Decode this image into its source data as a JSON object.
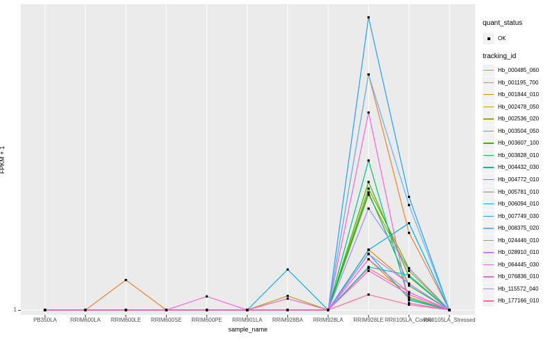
{
  "figure": {
    "background": "#FFFFFF",
    "panel_background": "#EBEBEB",
    "gridline_color": "#FFFFFF",
    "tick_color": "#333333",
    "axis_text_color": "#4D4D4D",
    "marker_color": "#000000"
  },
  "axes": {
    "x": {
      "title": "sample_name"
    },
    "y": {
      "title": "FPKM + 1",
      "tick_label": "1"
    }
  },
  "legend": {
    "quant_status": {
      "title": "quant_status",
      "item_label": "OK",
      "marker": "black-point"
    },
    "tracking_id": {
      "title": "tracking_id"
    }
  },
  "chart_data": {
    "type": "line",
    "title": "",
    "xlabel": "sample_name",
    "ylabel": "FPKM + 1",
    "grid": true,
    "legend_position": "right",
    "y_axis": {
      "scale": "log10",
      "labeled_ticks": [
        1
      ],
      "estimated_top_value": 3000
    },
    "quant_status_of_all_points": "OK",
    "categories": [
      "PB350LA",
      "RRIM600LA",
      "RRIM600LE",
      "RRIM600SE",
      "RRIM600PE",
      "RRIM901LA",
      "RRIM928BA",
      "RRIM928LA",
      "RRIM928LE",
      "RRII105LA_Control",
      "RRII105LA_Stressed"
    ],
    "series": [
      {
        "name": "Hb_000485_060",
        "color": "#F8766D",
        "values": [
          1,
          1,
          1,
          1,
          1,
          1,
          1,
          1,
          3.0,
          1.6,
          1
        ]
      },
      {
        "name": "Hb_001195_700",
        "color": "#EA8331",
        "values": [
          1,
          1,
          2.2,
          1,
          1,
          1,
          1,
          1,
          490,
          7.6,
          1
        ]
      },
      {
        "name": "Hb_001844_010",
        "color": "#D89000",
        "values": [
          1,
          1,
          1,
          1,
          1,
          1,
          1,
          1,
          4.9,
          2.0,
          1
        ]
      },
      {
        "name": "Hb_002478_050",
        "color": "#C09B00",
        "values": [
          1,
          1,
          1,
          1,
          1,
          1,
          1,
          1,
          3.8,
          1.4,
          1
        ]
      },
      {
        "name": "Hb_002536_020",
        "color": "#A3A500",
        "values": [
          1,
          1,
          1,
          1,
          1,
          1,
          1.45,
          1,
          20.7,
          2.8,
          1
        ]
      },
      {
        "name": "Hb_003504_050",
        "color": "#7CAE00",
        "values": [
          1,
          1,
          1,
          1,
          1,
          1,
          1,
          1,
          24.4,
          3.0,
          1
        ]
      },
      {
        "name": "Hb_003607_100",
        "color": "#39B600",
        "values": [
          1,
          1,
          1,
          1,
          1,
          1,
          1,
          1,
          29,
          2.4,
          1
        ]
      },
      {
        "name": "Hb_003828_010",
        "color": "#00BB4E",
        "values": [
          1,
          1,
          1,
          1,
          1,
          1,
          1,
          1,
          22,
          1.9,
          1
        ]
      },
      {
        "name": "Hb_004432_030",
        "color": "#00C087",
        "values": [
          1,
          1,
          1,
          1,
          1,
          1,
          1,
          1,
          51,
          1.3,
          1
        ]
      },
      {
        "name": "Hb_004772_010",
        "color": "#00C0B4",
        "values": [
          1,
          1,
          1,
          1,
          1,
          1,
          1,
          1,
          4.4,
          1.35,
          1
        ]
      },
      {
        "name": "Hb_005781_010",
        "color": "#00BCD8",
        "values": [
          1,
          1,
          1,
          1,
          1,
          1,
          1,
          1,
          3.1,
          2.5,
          1
        ]
      },
      {
        "name": "Hb_006094_010",
        "color": "#00B0F6",
        "values": [
          1,
          1,
          1,
          1,
          1,
          1,
          2.9,
          1,
          4.85,
          9.8,
          1
        ]
      },
      {
        "name": "Hb_007749_030",
        "color": "#1E9FF2",
        "values": [
          1,
          1,
          1,
          1,
          1,
          1,
          1,
          1,
          2200,
          19.6,
          1
        ]
      },
      {
        "name": "Hb_008375_020",
        "color": "#5EB3FF",
        "values": [
          1,
          1,
          1,
          1,
          1,
          1,
          1,
          1,
          490,
          15.8,
          1
        ]
      },
      {
        "name": "Hb_024446_010",
        "color": "#9590FF",
        "values": [
          1,
          1,
          1,
          1,
          1,
          1,
          1,
          1,
          14.4,
          3.0,
          1
        ]
      },
      {
        "name": "Hb_028910_010",
        "color": "#C77CFF",
        "values": [
          1,
          1,
          1,
          1,
          1,
          1,
          1,
          1,
          4.35,
          2.0,
          1
        ]
      },
      {
        "name": "Hb_064445_030",
        "color": "#E76BF3",
        "values": [
          1,
          1,
          1,
          1,
          1,
          1,
          1,
          1,
          3.8,
          1.6,
          1
        ]
      },
      {
        "name": "Hb_076836_010",
        "color": "#FA62DB",
        "values": [
          1,
          1,
          1,
          1,
          1,
          1,
          1,
          1,
          180,
          1.2,
          1
        ]
      },
      {
        "name": "Hb_115572_040",
        "color": "#FF61CC",
        "values": [
          1,
          1,
          1,
          1,
          1.43,
          1,
          1.35,
          1,
          2.8,
          1.5,
          1
        ]
      },
      {
        "name": "Hb_177166_010",
        "color": "#FF6A98",
        "values": [
          1,
          1,
          1,
          1,
          1,
          1,
          1,
          1,
          1.5,
          1.15,
          1
        ]
      }
    ]
  }
}
